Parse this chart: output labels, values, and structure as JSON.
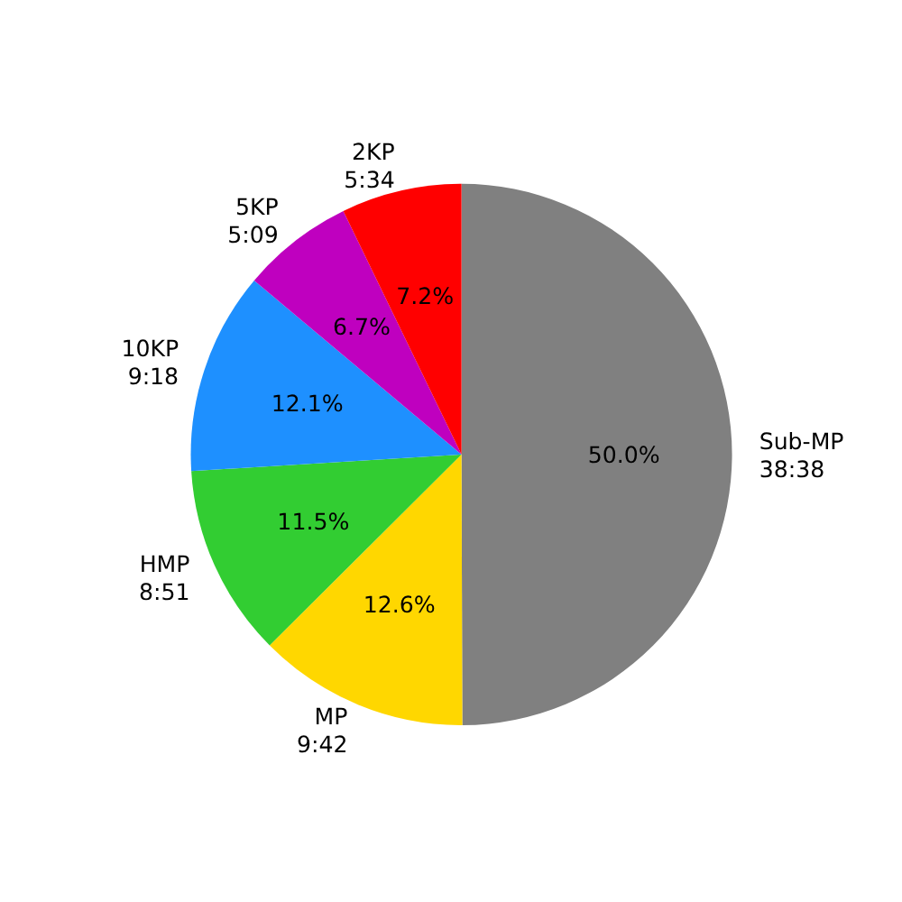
{
  "chart_data": {
    "type": "pie",
    "categories": [
      "Sub-MP\n38:38",
      "MP\n9:42",
      "HMP\n8:51",
      "10KP\n9:18",
      "5KP\n5:09",
      "2KP\n5:34"
    ],
    "values": [
      50.0,
      12.6,
      11.5,
      12.1,
      6.7,
      7.2
    ],
    "value_labels": [
      "50.0%",
      "12.6%",
      "11.5%",
      "12.1%",
      "6.7%",
      "7.2%"
    ],
    "colors": [
      "#808080",
      "#ffd700",
      "#32cd32",
      "#1e90ff",
      "#bf00bf",
      "#ff0000"
    ]
  }
}
